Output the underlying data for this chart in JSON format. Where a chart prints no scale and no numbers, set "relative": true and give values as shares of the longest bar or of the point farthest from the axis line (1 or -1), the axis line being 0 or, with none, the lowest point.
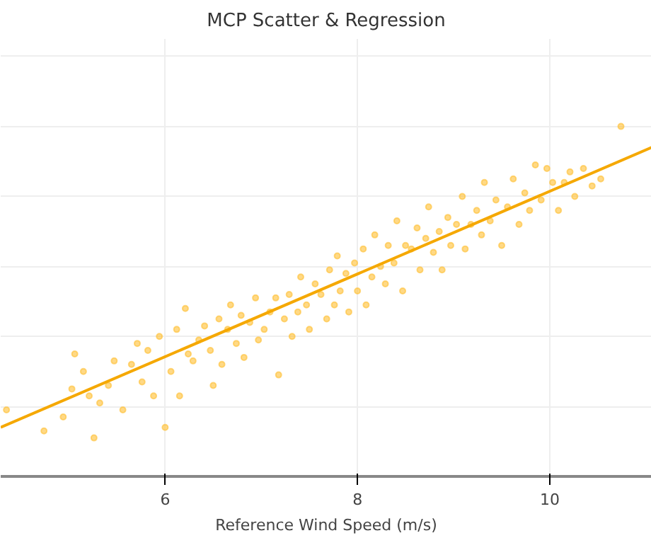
{
  "chart_data": {
    "type": "scatter",
    "title": "MCP Scatter & Regression",
    "xlabel": "Reference Wind Speed (m/s)",
    "xlim": [
      4.29,
      11.06
    ],
    "xticks": [
      6,
      8,
      10
    ],
    "relative": true,
    "grid": true,
    "tick_labels": "x",
    "series": [
      {
        "marker": "circle",
        "color": "#ffbf33",
        "x": [
          4.35,
          4.74,
          4.94,
          5.03,
          5.06,
          5.15,
          5.21,
          5.26,
          5.32,
          5.41,
          5.47,
          5.56,
          5.65,
          5.71,
          5.76,
          5.82,
          5.88,
          5.94,
          6.0,
          6.06,
          6.12,
          6.15,
          6.21,
          6.24,
          6.29,
          6.35,
          6.41,
          6.47,
          6.5,
          6.56,
          6.59,
          6.65,
          6.68,
          6.74,
          6.79,
          6.82,
          6.88,
          6.94,
          6.97,
          7.03,
          7.09,
          7.15,
          7.18,
          7.24,
          7.29,
          7.32,
          7.38,
          7.41,
          7.47,
          7.5,
          7.56,
          7.62,
          7.68,
          7.71,
          7.76,
          7.79,
          7.82,
          7.88,
          7.91,
          7.97,
          8.0,
          8.06,
          8.09,
          8.15,
          8.18,
          8.24,
          8.29,
          8.32,
          8.38,
          8.41,
          8.47,
          8.5,
          8.56,
          8.62,
          8.65,
          8.71,
          8.74,
          8.79,
          8.85,
          8.88,
          8.94,
          8.97,
          9.03,
          9.09,
          9.12,
          9.18,
          9.24,
          9.29,
          9.32,
          9.38,
          9.44,
          9.5,
          9.56,
          9.62,
          9.68,
          9.74,
          9.79,
          9.85,
          9.91,
          9.97,
          10.03,
          10.09,
          10.15,
          10.21,
          10.26,
          10.35,
          10.44,
          10.53,
          10.74
        ],
        "values": [
          0.19,
          0.13,
          0.17,
          0.25,
          0.35,
          0.3,
          0.23,
          0.11,
          0.21,
          0.26,
          0.33,
          0.19,
          0.32,
          0.38,
          0.27,
          0.36,
          0.23,
          0.4,
          0.14,
          0.3,
          0.42,
          0.23,
          0.48,
          0.35,
          0.33,
          0.39,
          0.43,
          0.36,
          0.26,
          0.45,
          0.32,
          0.42,
          0.49,
          0.38,
          0.46,
          0.34,
          0.44,
          0.51,
          0.39,
          0.42,
          0.47,
          0.51,
          0.29,
          0.45,
          0.52,
          0.4,
          0.47,
          0.57,
          0.49,
          0.42,
          0.55,
          0.52,
          0.45,
          0.59,
          0.49,
          0.63,
          0.53,
          0.58,
          0.47,
          0.61,
          0.53,
          0.65,
          0.49,
          0.57,
          0.69,
          0.6,
          0.55,
          0.66,
          0.61,
          0.73,
          0.53,
          0.66,
          0.65,
          0.71,
          0.59,
          0.68,
          0.77,
          0.64,
          0.7,
          0.59,
          0.74,
          0.66,
          0.72,
          0.8,
          0.65,
          0.72,
          0.76,
          0.69,
          0.84,
          0.73,
          0.79,
          0.66,
          0.77,
          0.85,
          0.72,
          0.81,
          0.76,
          0.89,
          0.79,
          0.88,
          0.84,
          0.76,
          0.84,
          0.87,
          0.8,
          0.88,
          0.83,
          0.85,
          1.0
        ]
      },
      {
        "type": "line",
        "marker": "none",
        "color": "#f5a800",
        "x": [
          4.29,
          11.06
        ],
        "values": [
          0.14,
          0.94
        ]
      }
    ]
  }
}
